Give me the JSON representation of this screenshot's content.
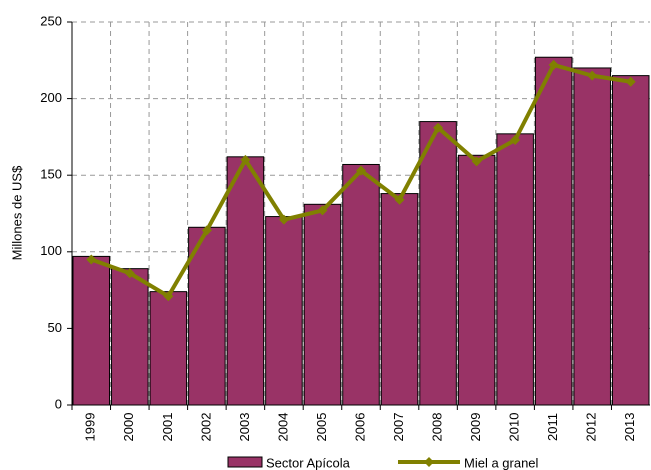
{
  "chart_data": {
    "type": "bar_line",
    "y_label": "Millones de US$",
    "categories": [
      "1999",
      "2000",
      "2001",
      "2002",
      "2003",
      "2004",
      "2005",
      "2006",
      "2007",
      "2008",
      "2009",
      "2010",
      "2011",
      "2012",
      "2013"
    ],
    "series": [
      {
        "name": "Sector Apícola",
        "type": "bar",
        "color": "#993366",
        "values": [
          97,
          89,
          74,
          116,
          162,
          123,
          131,
          157,
          138,
          185,
          163,
          177,
          227,
          220,
          215
        ]
      },
      {
        "name": "Miel a granel",
        "type": "line",
        "color": "#808000",
        "values": [
          95,
          86,
          71,
          114,
          160,
          121,
          127,
          153,
          134,
          181,
          159,
          173,
          222,
          215,
          211
        ]
      }
    ],
    "ylim": [
      0,
      250
    ],
    "yticks": [
      0,
      50,
      100,
      150,
      200,
      250
    ],
    "grid": true,
    "legend": "bottom"
  }
}
